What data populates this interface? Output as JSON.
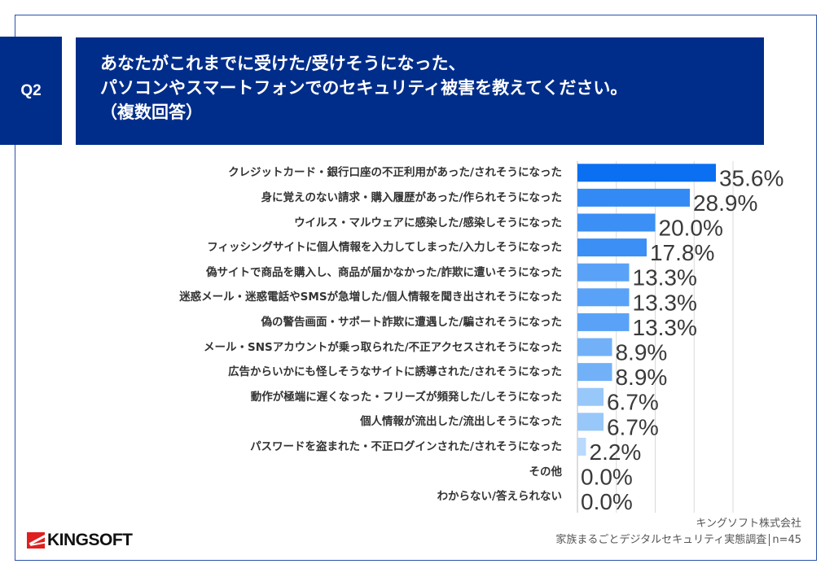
{
  "header": {
    "question_number": "Q2",
    "title_lines": [
      "あなたがこれまでに受けた/受けそうになった、",
      "パソコンやスマートフォンでのセキュリティ被害を教えてください。",
      "（複数回答）"
    ]
  },
  "chart_data": {
    "type": "bar",
    "orientation": "horizontal",
    "categories": [
      "クレジットカード・銀行口座の不正利用があった/されそうになった",
      "身に覚えのない請求・購入履歴があった/作られそうになった",
      "ウイルス・マルウェアに感染した/感染しそうになった",
      "フィッシングサイトに個人情報を入力してしまった/入力しそうになった",
      "偽サイトで商品を購入し、商品が届かなかった/詐欺に遭いそうになった",
      "迷惑メール・迷惑電話やSMSが急増した/個人情報を聞き出されそうになった",
      "偽の警告画面・サポート詐欺に遭遇した/騙されそうになった",
      "メール・SNSアカウントが乗っ取られた/不正アクセスされそうになった",
      "広告からいかにも怪しそうなサイトに誘導された/されそうになった",
      "動作が極端に遅くなった・フリーズが頻発した/しそうになった",
      "個人情報が流出した/流出しそうになった",
      "パスワードを盗まれた・不正ログインされた/されそうになった",
      "その他",
      "わからない/答えられない"
    ],
    "values": [
      35.6,
      28.9,
      20.0,
      17.8,
      13.3,
      13.3,
      13.3,
      8.9,
      8.9,
      6.7,
      6.7,
      2.2,
      0.0,
      0.0
    ],
    "value_labels": [
      "35.6%",
      "28.9%",
      "20.0%",
      "17.8%",
      "13.3%",
      "13.3%",
      "13.3%",
      "8.9%",
      "8.9%",
      "6.7%",
      "6.7%",
      "2.2%",
      "0.0%",
      "0.0%"
    ],
    "unit": "%",
    "xlim": [
      0,
      40
    ],
    "grid": true,
    "colors": [
      "#0a6ff0",
      "#338af5",
      "#3b8ff5",
      "#3b8ff5",
      "#5aa2f7",
      "#5aa2f7",
      "#5aa2f7",
      "#72b1f8",
      "#72b1f8",
      "#98c7fa",
      "#98c7fa",
      "#b9dafc",
      "#b9dafc",
      "#b9dafc"
    ]
  },
  "footer": {
    "brand": "KINGSOFT",
    "company": "キングソフト株式会社",
    "survey": "家族まるごとデジタルセキュリティ実態調査",
    "sample": "n=45"
  }
}
